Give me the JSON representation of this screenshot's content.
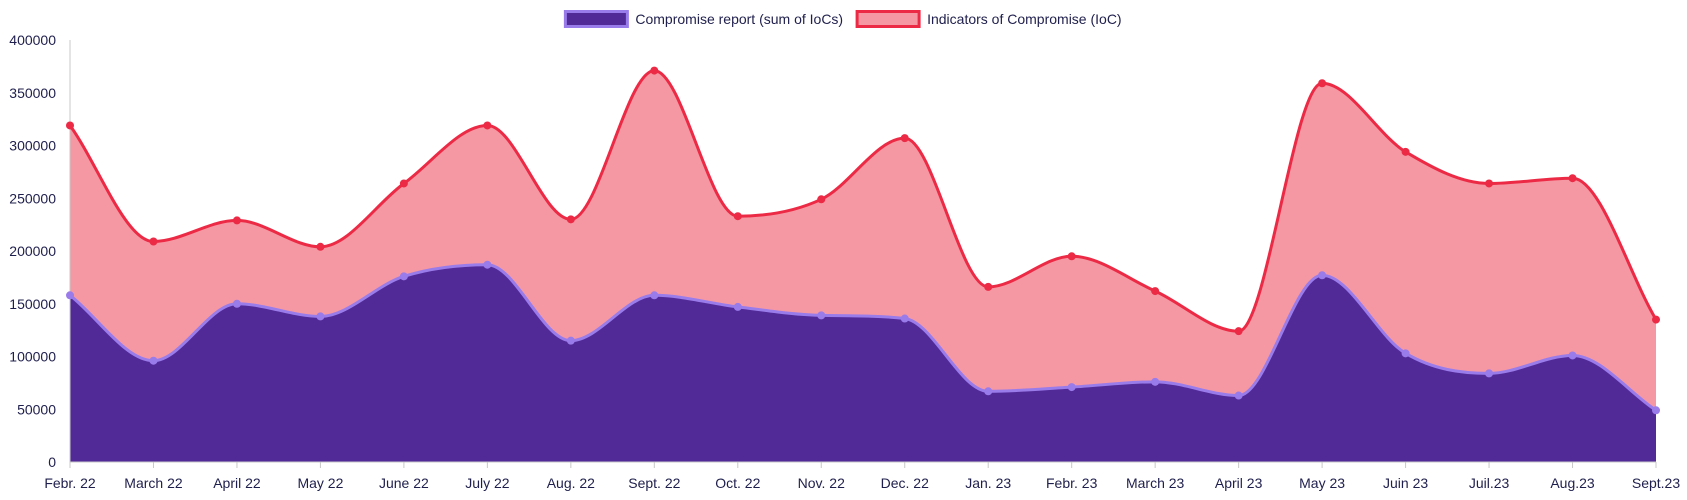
{
  "chart_data": {
    "type": "area",
    "categories": [
      "Febr. 22",
      "March 22",
      "April 22",
      "May 22",
      "June 22",
      "July 22",
      "Aug. 22",
      "Sept. 22",
      "Oct. 22",
      "Nov. 22",
      "Dec. 22",
      "Jan. 23",
      "Febr. 23",
      "March 23",
      "April 23",
      "May 23",
      "Juin 23",
      "Juil.23",
      "Aug.23",
      "Sept.23"
    ],
    "series": [
      {
        "name": "Compromise report (sum of IoCs)",
        "values": [
          158000,
          96000,
          150000,
          138000,
          176000,
          187000,
          115000,
          158000,
          147000,
          139000,
          136000,
          67000,
          71000,
          76000,
          63000,
          177000,
          103000,
          84000,
          101000,
          49000
        ],
        "color": "#512a97",
        "line_color": "#9a7bea"
      },
      {
        "name": "Indicators of Compromise (IoC)",
        "values": [
          319000,
          209000,
          229000,
          204000,
          264000,
          319000,
          230000,
          371000,
          233000,
          249000,
          307000,
          166000,
          195000,
          162000,
          124000,
          359000,
          294000,
          264000,
          269000,
          135000
        ],
        "color": "#f598a3",
        "line_color": "#ec2a45"
      }
    ],
    "title": "",
    "xlabel": "",
    "ylabel": "",
    "ylim": [
      0,
      400000
    ],
    "yticks": [
      "0",
      "50000",
      "100000",
      "150000",
      "200000",
      "250000",
      "300000",
      "350000",
      "400000"
    ],
    "grid": false,
    "legend_position": "top-center",
    "stacked": false
  }
}
